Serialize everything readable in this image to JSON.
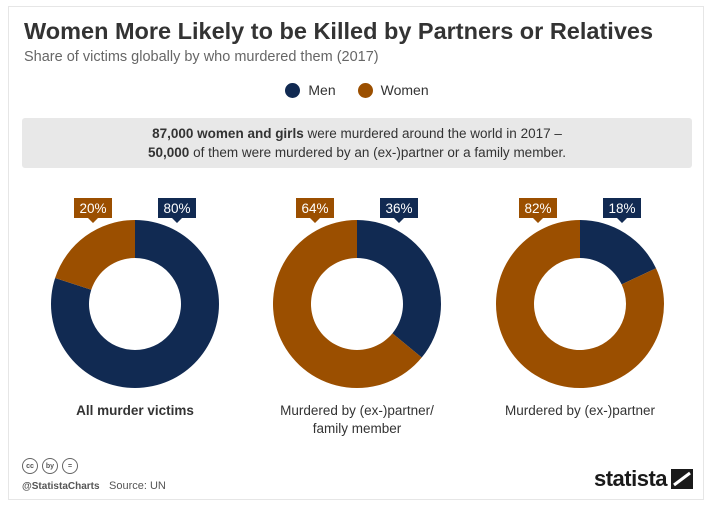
{
  "header": {
    "title": "Women More Likely to be Killed by Partners or Relatives",
    "subtitle": "Share of victims globally by who murdered them (2017)"
  },
  "legend": [
    {
      "label": "Men",
      "color": "#112a52"
    },
    {
      "label": "Women",
      "color": "#9b4f00"
    }
  ],
  "note": {
    "line1_bold": "87,000 women and girls",
    "line1_rest": " were murdered around the world in 2017 –",
    "line2_bold": "50,000",
    "line2_rest": " of them were murdered by an (ex-)partner or a family member."
  },
  "chart_data": {
    "type": "pie",
    "variant": "donut",
    "series_names": [
      "Women",
      "Men"
    ],
    "colors": {
      "Men": "#112a52",
      "Women": "#9b4f00"
    },
    "charts": [
      {
        "label": "All murder victims",
        "label_lines": [
          "All murder victims"
        ],
        "women": 20,
        "men": 80,
        "women_label": "20%",
        "men_label": "80%"
      },
      {
        "label": "Murdered by (ex-)partner/ family member",
        "label_lines": [
          "Murdered by (ex-)partner/",
          "family member"
        ],
        "women": 64,
        "men": 36,
        "women_label": "64%",
        "men_label": "36%"
      },
      {
        "label": "Murdered by (ex-)partner",
        "label_lines": [
          "Murdered by (ex-)partner"
        ],
        "women": 82,
        "men": 18,
        "women_label": "82%",
        "men_label": "18%"
      }
    ]
  },
  "footer": {
    "cc_icons": [
      "cc",
      "by",
      "="
    ],
    "handle": "@StatistaCharts",
    "source": "Source: UN",
    "brand": "statista"
  }
}
